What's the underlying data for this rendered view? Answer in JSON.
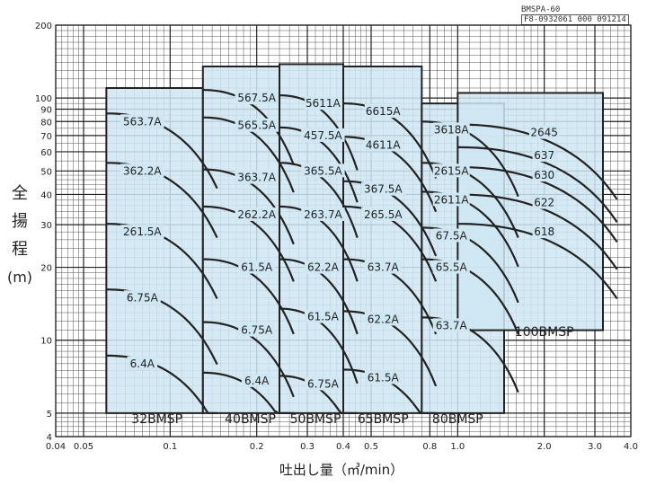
{
  "document_code": "BMSPA-60",
  "doc_number": "F8-0932061 000 091214",
  "y_title_chars": [
    "全",
    "揚",
    "程",
    "(m)"
  ],
  "x_title": "吐出し量（㎥/min）",
  "chart_data": {
    "type": "area",
    "x_scale": "log",
    "y_scale": "log",
    "xlim": [
      0.04,
      4.0
    ],
    "ylim": [
      4,
      200
    ],
    "grid": true,
    "x_tick_labels": [
      "0.04",
      "0.05",
      "0.1",
      "0.2",
      "0.3",
      "0.4",
      "0.5",
      "0.8",
      "1.0",
      "2.0",
      "3.0",
      "4.0"
    ],
    "x_tick_values": [
      0.04,
      0.05,
      0.1,
      0.2,
      0.3,
      0.4,
      0.5,
      0.8,
      1.0,
      2.0,
      3.0,
      4.0
    ],
    "y_tick_labels": [
      "4",
      "5",
      "10",
      "20",
      "30",
      "40",
      "50",
      "60",
      "70",
      "80",
      "90",
      "100",
      "200"
    ],
    "y_tick_values": [
      4,
      5,
      10,
      20,
      30,
      40,
      50,
      60,
      70,
      80,
      90,
      100,
      200
    ],
    "series": [
      {
        "name": "32BMSP",
        "q_range": [
          0.06,
          0.13
        ],
        "h_range": [
          5,
          110
        ]
      },
      {
        "name": "40BMSP",
        "q_range": [
          0.13,
          0.24
        ],
        "h_range": [
          5,
          135
        ]
      },
      {
        "name": "50BMSP",
        "q_range": [
          0.24,
          0.4
        ],
        "h_range": [
          5,
          138
        ]
      },
      {
        "name": "65BMSP",
        "q_range": [
          0.4,
          0.75
        ],
        "h_range": [
          5,
          135
        ]
      },
      {
        "name": "80BMSP",
        "q_range": [
          0.75,
          1.45
        ],
        "h_range": [
          5,
          95
        ]
      },
      {
        "name": "100BMSP",
        "q_range": [
          1.0,
          3.2
        ],
        "h_range": [
          11,
          105
        ]
      }
    ],
    "curves": [
      {
        "label": "563.7A",
        "model": "32BMSP",
        "q": 0.08,
        "h": 80
      },
      {
        "label": "362.2A",
        "model": "32BMSP",
        "q": 0.08,
        "h": 50
      },
      {
        "label": "261.5A",
        "model": "32BMSP",
        "q": 0.08,
        "h": 28
      },
      {
        "label": "6.75A",
        "model": "32BMSP",
        "q": 0.08,
        "h": 15
      },
      {
        "label": "6.4A",
        "model": "32BMSP",
        "q": 0.08,
        "h": 8
      },
      {
        "label": "567.5A",
        "model": "40BMSP",
        "q": 0.2,
        "h": 100
      },
      {
        "label": "565.5A",
        "model": "40BMSP",
        "q": 0.2,
        "h": 77
      },
      {
        "label": "363.7A",
        "model": "40BMSP",
        "q": 0.2,
        "h": 47
      },
      {
        "label": "262.2A",
        "model": "40BMSP",
        "q": 0.2,
        "h": 33
      },
      {
        "label": "61.5A",
        "model": "40BMSP",
        "q": 0.2,
        "h": 20
      },
      {
        "label": "6.75A",
        "model": "40BMSP",
        "q": 0.2,
        "h": 11
      },
      {
        "label": "6.4A",
        "model": "40BMSP",
        "q": 0.2,
        "h": 6.8
      },
      {
        "label": "5611A",
        "model": "50BMSP",
        "q": 0.34,
        "h": 95
      },
      {
        "label": "457.5A",
        "model": "50BMSP",
        "q": 0.34,
        "h": 70
      },
      {
        "label": "365.5A",
        "model": "50BMSP",
        "q": 0.34,
        "h": 50
      },
      {
        "label": "263.7A",
        "model": "50BMSP",
        "q": 0.34,
        "h": 33
      },
      {
        "label": "62.2A",
        "model": "50BMSP",
        "q": 0.34,
        "h": 20
      },
      {
        "label": "61.5A",
        "model": "50BMSP",
        "q": 0.34,
        "h": 12.5
      },
      {
        "label": "6.75A",
        "model": "50BMSP",
        "q": 0.34,
        "h": 6.6
      },
      {
        "label": "6615A",
        "model": "65BMSP",
        "q": 0.55,
        "h": 88
      },
      {
        "label": "4611A",
        "model": "65BMSP",
        "q": 0.55,
        "h": 64
      },
      {
        "label": "367.5A",
        "model": "65BMSP",
        "q": 0.55,
        "h": 42
      },
      {
        "label": "265.5A",
        "model": "65BMSP",
        "q": 0.55,
        "h": 33
      },
      {
        "label": "63.7A",
        "model": "65BMSP",
        "q": 0.55,
        "h": 20
      },
      {
        "label": "62.2A",
        "model": "65BMSP",
        "q": 0.55,
        "h": 12.2
      },
      {
        "label": "61.5A",
        "model": "65BMSP",
        "q": 0.55,
        "h": 7
      },
      {
        "label": "3618A",
        "model": "80BMSP",
        "q": 0.95,
        "h": 74
      },
      {
        "label": "2615A",
        "model": "80BMSP",
        "q": 0.95,
        "h": 50
      },
      {
        "label": "2611A",
        "model": "80BMSP",
        "q": 0.95,
        "h": 38
      },
      {
        "label": "67.5A",
        "model": "80BMSP",
        "q": 0.95,
        "h": 27
      },
      {
        "label": "65.5A",
        "model": "80BMSP",
        "q": 0.95,
        "h": 20
      },
      {
        "label": "63.7A",
        "model": "80BMSP",
        "q": 0.95,
        "h": 11.5
      },
      {
        "label": "2645",
        "model": "100BMSP",
        "q": 2.0,
        "h": 72
      },
      {
        "label": "637",
        "model": "100BMSP",
        "q": 2.0,
        "h": 58
      },
      {
        "label": "630",
        "model": "100BMSP",
        "q": 2.0,
        "h": 48
      },
      {
        "label": "622",
        "model": "100BMSP",
        "q": 2.0,
        "h": 37
      },
      {
        "label": "618",
        "model": "100BMSP",
        "q": 2.0,
        "h": 28
      }
    ]
  }
}
